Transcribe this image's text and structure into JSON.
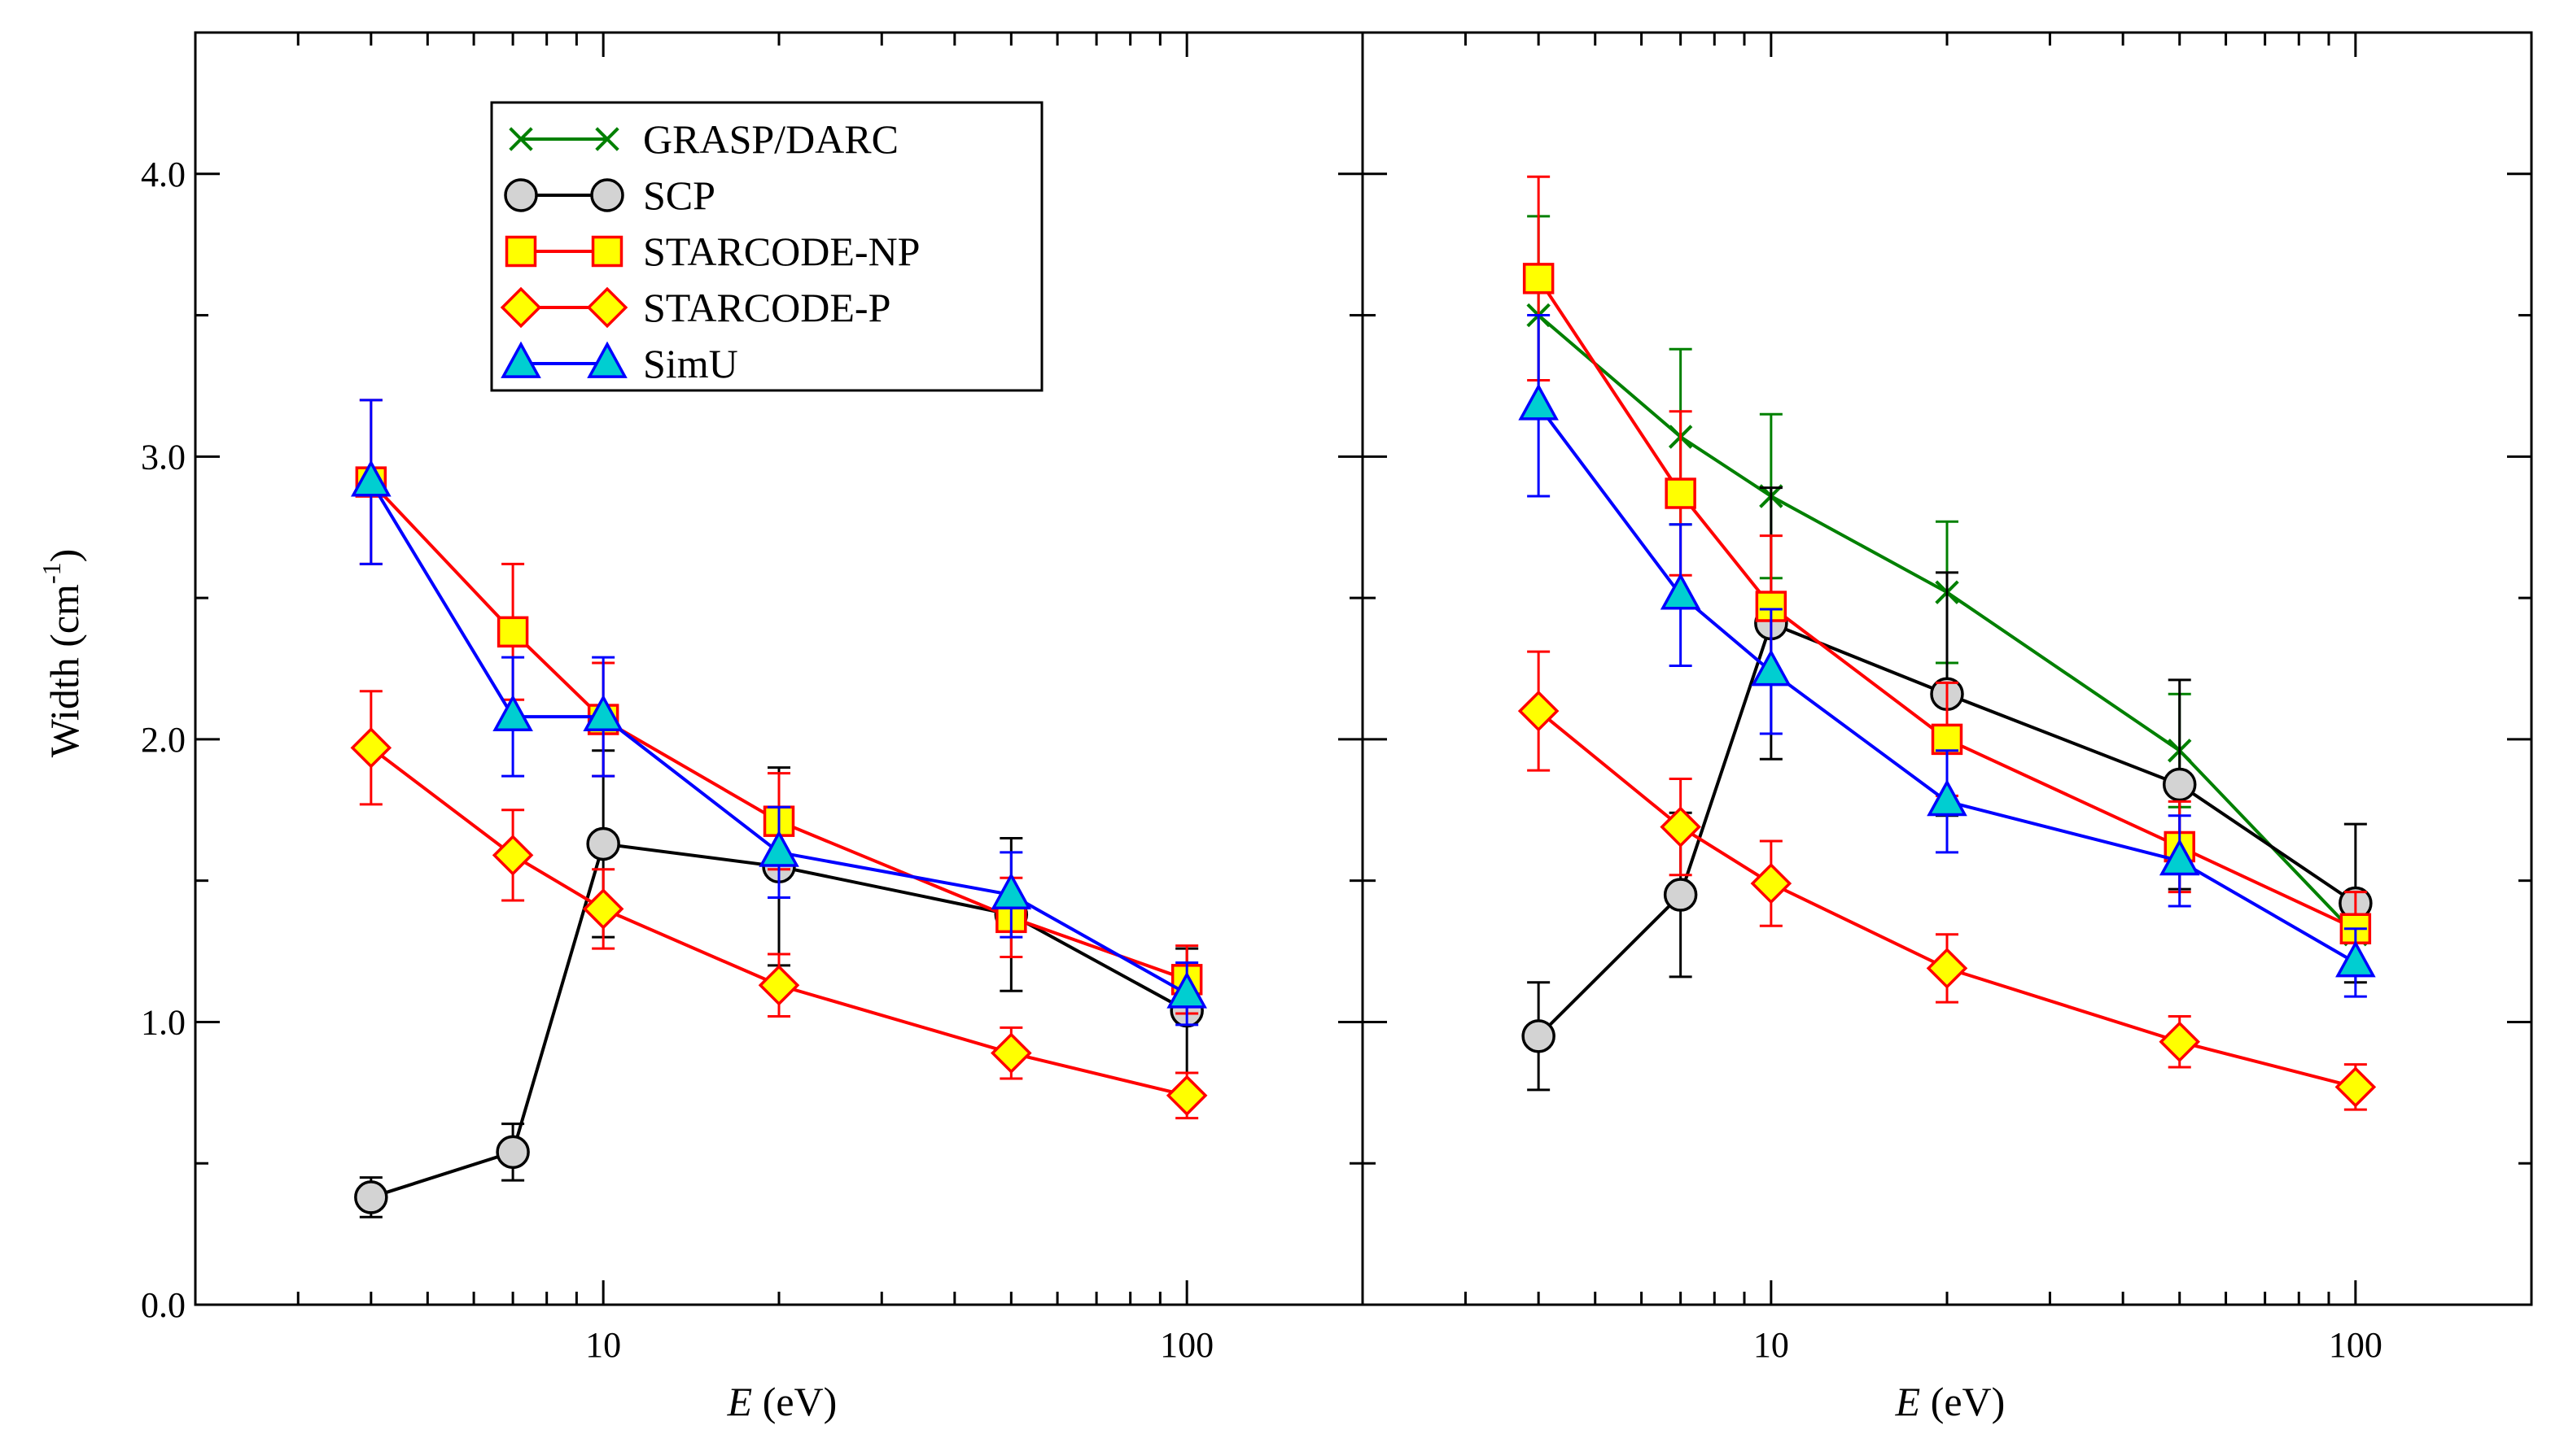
{
  "chart_data": {
    "type": "line",
    "x_scale": "log",
    "x": [
      4,
      7,
      10,
      20,
      50,
      100
    ],
    "xlim": [
      2,
      200
    ],
    "ylim": [
      0,
      4.5
    ],
    "ylabel_main": "Width (cm",
    "ylabel_sup": "-1",
    "ylabel_close": ")",
    "xlabel_var": "E",
    "xlabel_unit": " (eV)",
    "x_tick_labels": [
      "10",
      "100"
    ],
    "x_tick_values": [
      10,
      100
    ],
    "y_tick_labels": [
      "0.0",
      "1.0",
      "2.0",
      "3.0",
      "4.0"
    ],
    "y_tick_values": [
      0,
      1,
      2,
      3,
      4
    ],
    "legend": [
      "GRASP/DARC",
      "SCP",
      "STARCODE-NP",
      "STARCODE-P",
      "SimU"
    ],
    "styles": {
      "GRASP/DARC": {
        "color": "#008000",
        "fill": "none",
        "marker": "x"
      },
      "SCP": {
        "color": "#000000",
        "fill": "#d3d3d3",
        "marker": "circle"
      },
      "STARCODE-NP": {
        "color": "#ff0000",
        "fill": "#ffff00",
        "marker": "square"
      },
      "STARCODE-P": {
        "color": "#ff0000",
        "fill": "#ffff00",
        "marker": "diamond"
      },
      "SimU": {
        "color": "#0000ff",
        "fill": "#00ced1",
        "marker": "triangle"
      }
    },
    "panels": [
      {
        "name": "left",
        "series": [
          {
            "name": "SCP",
            "values": [
              0.38,
              0.54,
              1.63,
              1.55,
              1.38,
              1.04
            ],
            "err": [
              0.07,
              0.1,
              0.33,
              0.35,
              0.27,
              0.22
            ]
          },
          {
            "name": "STARCODE-NP",
            "values": [
              2.91,
              2.38,
              2.07,
              1.71,
              1.37,
              1.15
            ],
            "err": [
              0.29,
              0.24,
              0.2,
              0.17,
              0.14,
              0.12
            ]
          },
          {
            "name": "STARCODE-P",
            "values": [
              1.97,
              1.59,
              1.4,
              1.13,
              0.89,
              0.74
            ],
            "err": [
              0.2,
              0.16,
              0.14,
              0.11,
              0.09,
              0.08
            ]
          },
          {
            "name": "SimU",
            "values": [
              2.91,
              2.08,
              2.08,
              1.6,
              1.45,
              1.1
            ],
            "err": [
              0.29,
              0.21,
              0.21,
              0.16,
              0.15,
              0.11
            ]
          }
        ]
      },
      {
        "name": "right",
        "series": [
          {
            "name": "GRASP/DARC",
            "values": [
              3.5,
              3.07,
              2.86,
              2.52,
              1.96,
              1.31
            ],
            "err": [
              0.35,
              0.31,
              0.29,
              0.25,
              0.2,
              0.13
            ]
          },
          {
            "name": "SCP",
            "values": [
              0.95,
              1.45,
              2.41,
              2.16,
              1.84,
              1.42
            ],
            "err": [
              0.19,
              0.29,
              0.48,
              0.43,
              0.37,
              0.28
            ]
          },
          {
            "name": "STARCODE-NP",
            "values": [
              3.63,
              2.87,
              2.47,
              2.0,
              1.62,
              1.33
            ],
            "err": [
              0.36,
              0.29,
              0.25,
              0.2,
              0.16,
              0.13
            ]
          },
          {
            "name": "STARCODE-P",
            "values": [
              2.1,
              1.69,
              1.49,
              1.19,
              0.93,
              0.77
            ],
            "err": [
              0.21,
              0.17,
              0.15,
              0.12,
              0.09,
              0.08
            ]
          },
          {
            "name": "SimU",
            "values": [
              3.18,
              2.51,
              2.24,
              1.78,
              1.57,
              1.21
            ],
            "err": [
              0.32,
              0.25,
              0.22,
              0.18,
              0.16,
              0.12
            ]
          }
        ]
      }
    ]
  }
}
